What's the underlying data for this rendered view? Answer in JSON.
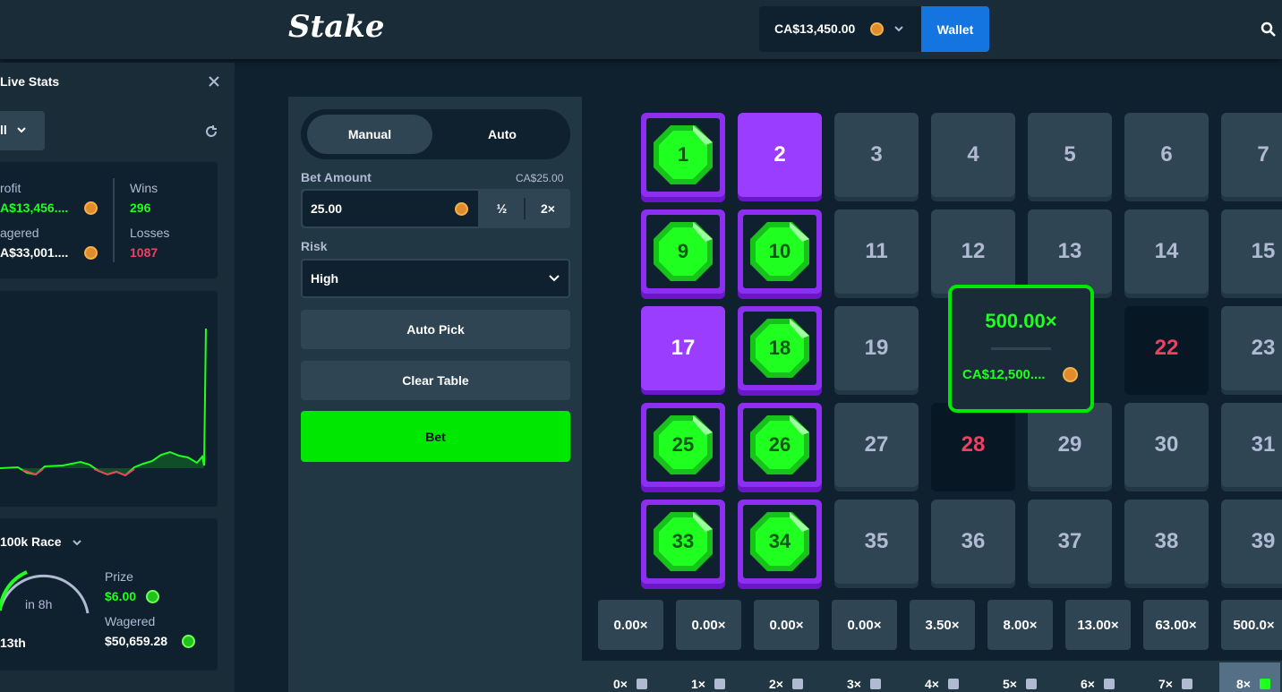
{
  "header": {
    "logo": "Stake",
    "balance": "CA$13,450.00",
    "wallet": "Wallet"
  },
  "live_stats": {
    "title": "Live Stats",
    "filter": "ll",
    "stats": {
      "profit_label": "rofit",
      "profit": "A$13,456....",
      "wagered_label": "agered",
      "wagered": "A$33,001....",
      "wins_label": "Wins",
      "wins": "296",
      "losses_label": "Losses",
      "losses": "1087"
    },
    "race": {
      "title": "100k Race",
      "timer": "in 8h",
      "rank": "13th",
      "prize_label": "Prize",
      "prize": "$6.00",
      "wagered_label": "Wagered",
      "wagered": "$50,659.28"
    }
  },
  "controls": {
    "tabs": [
      "Manual",
      "Auto"
    ],
    "bet_amount_label": "Bet Amount",
    "bet_amount_hint": "CA$25.00",
    "bet_input": "25.00",
    "half": "½",
    "double": "2×",
    "risk_label": "Risk",
    "risk": "High",
    "auto_pick": "Auto Pick",
    "clear_table": "Clear Table",
    "bet": "Bet"
  },
  "board": {
    "tiles": [
      {
        "label": 1,
        "state": "gem"
      },
      {
        "label": 2,
        "state": "picked"
      },
      {
        "label": 3,
        "state": "idle"
      },
      {
        "label": 4,
        "state": "idle"
      },
      {
        "label": 5,
        "state": "idle"
      },
      {
        "label": 6,
        "state": "idle"
      },
      {
        "label": 7,
        "state": "idle"
      },
      {
        "label": 9,
        "state": "gem"
      },
      {
        "label": 10,
        "state": "gem"
      },
      {
        "label": 11,
        "state": "idle"
      },
      {
        "label": 12,
        "state": "idle"
      },
      {
        "label": 13,
        "state": "idle"
      },
      {
        "label": 14,
        "state": "idle"
      },
      {
        "label": 15,
        "state": "idle"
      },
      {
        "label": 17,
        "state": "picked"
      },
      {
        "label": 18,
        "state": "gem"
      },
      {
        "label": 19,
        "state": "idle"
      },
      {
        "label": 22,
        "state": "drawn"
      },
      {
        "label": 23,
        "state": "idle"
      },
      {
        "label": 25,
        "state": "gem"
      },
      {
        "label": 26,
        "state": "gem"
      },
      {
        "label": 27,
        "state": "idle"
      },
      {
        "label": 28,
        "state": "drawn"
      },
      {
        "label": 29,
        "state": "idle"
      },
      {
        "label": 30,
        "state": "idle"
      },
      {
        "label": 31,
        "state": "idle"
      },
      {
        "label": 33,
        "state": "gem"
      },
      {
        "label": 34,
        "state": "gem"
      },
      {
        "label": 35,
        "state": "idle"
      },
      {
        "label": 36,
        "state": "idle"
      },
      {
        "label": 37,
        "state": "idle"
      },
      {
        "label": 38,
        "state": "idle"
      },
      {
        "label": 39,
        "state": "idle"
      }
    ],
    "win": {
      "multiplier": "500.00×",
      "amount": "CA$12,500...."
    },
    "payouts": [
      "0.00×",
      "0.00×",
      "0.00×",
      "0.00×",
      "3.50×",
      "8.00×",
      "13.00×",
      "63.00×",
      "500.0×"
    ],
    "hits": [
      "0×",
      "1×",
      "2×",
      "3×",
      "4×",
      "5×",
      "6×",
      "7×",
      "8×"
    ]
  }
}
